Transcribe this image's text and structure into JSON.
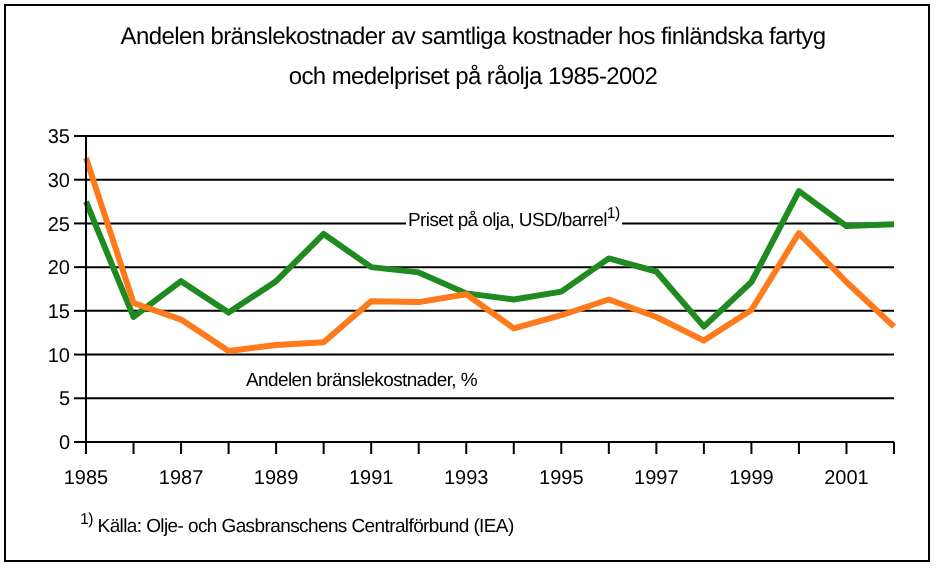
{
  "chart_data": {
    "type": "line",
    "title": "Andelen bränslekostnader av samtliga kostnader hos finländska fartyg\noch medelpriset på råolja 1985-2002",
    "categories": [
      "1985",
      null,
      "1987",
      null,
      "1989",
      null,
      "1991",
      null,
      "1993",
      null,
      "1995",
      null,
      "1997",
      null,
      "1999",
      null,
      "2001",
      null
    ],
    "series": [
      {
        "name": "Priset på olja, USD/barrel$^{1)}$",
        "color": "#1f8a1f",
        "values": [
          27.5,
          14.3,
          18.4,
          14.8,
          18.4,
          23.8,
          20.0,
          19.4,
          17.0,
          16.3,
          17.2,
          21.0,
          19.5,
          13.2,
          18.3,
          28.7,
          24.7,
          24.9
        ]
      },
      {
        "name": "Andelen bränslekostnader, %",
        "color": "#ff7a1a",
        "values": [
          32.5,
          15.9,
          14.0,
          10.4,
          11.1,
          11.4,
          16.1,
          16.0,
          16.9,
          13.0,
          14.5,
          16.3,
          14.3,
          11.6,
          15.1,
          23.9,
          18.3,
          13.2
        ]
      }
    ],
    "ylim": [
      0,
      35
    ],
    "yticks": [
      0,
      5,
      10,
      15,
      20,
      25,
      30,
      35
    ],
    "grid": "y",
    "legend": false,
    "marker": "none",
    "line_style": "solid",
    "annotations": [
      "$^{1)}$ Källa: Olje- och Gasbranschens Centralförbund (IEA)"
    ]
  }
}
